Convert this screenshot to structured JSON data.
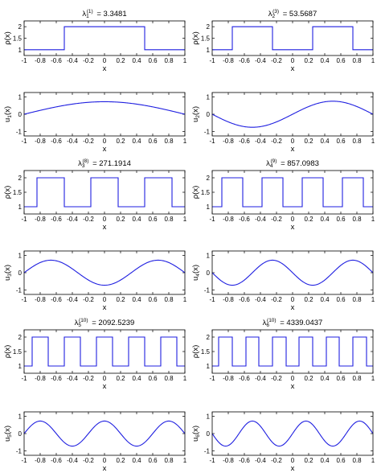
{
  "chart_data": [
    {
      "type": "line",
      "title": {
        "lambda": "λ",
        "sub": "1",
        "sup": "(1)",
        "value": "= 3.3481"
      },
      "xlabel": "x",
      "ylabel": {
        "main": "ρ",
        "arg": "(x)",
        "sub": ""
      },
      "xlim": [
        -1,
        1
      ],
      "ylim": [
        0.75,
        2.25
      ],
      "xticks": [
        -1,
        -0.8,
        -0.6,
        -0.4,
        -0.2,
        0,
        0.2,
        0.4,
        0.6,
        0.8,
        1
      ],
      "yticks": [
        1,
        1.5,
        2
      ],
      "series": [
        {
          "kind": "step",
          "rho_min": 1,
          "rho_max": 2,
          "high_intervals": [
            [
              -0.5,
              0.5
            ]
          ]
        }
      ]
    },
    {
      "type": "line",
      "title": {
        "lambda": "λ",
        "sub": "2",
        "sup": "(3)",
        "value": "= 53.5687"
      },
      "xlabel": "x",
      "ylabel": {
        "main": "ρ",
        "arg": "(x)",
        "sub": ""
      },
      "xlim": [
        -1,
        1
      ],
      "ylim": [
        0.75,
        2.25
      ],
      "xticks": [
        -1,
        -0.8,
        -0.6,
        -0.4,
        -0.2,
        0,
        0.2,
        0.4,
        0.6,
        0.8,
        1
      ],
      "yticks": [
        1,
        1.5,
        2
      ],
      "series": [
        {
          "kind": "step",
          "rho_min": 1,
          "rho_max": 2,
          "high_intervals": [
            [
              -0.75,
              -0.25
            ],
            [
              0.25,
              0.75
            ]
          ]
        }
      ]
    },
    {
      "type": "line",
      "xlabel": "x",
      "ylabel": {
        "main": "u",
        "arg": "(x)",
        "sub": "1"
      },
      "xlim": [
        -1,
        1
      ],
      "ylim": [
        -1.25,
        1.25
      ],
      "xticks": [
        -1,
        -0.8,
        -0.6,
        -0.4,
        -0.2,
        0,
        0.2,
        0.4,
        0.6,
        0.8,
        1
      ],
      "yticks": [
        -1,
        0,
        1
      ],
      "series": [
        {
          "kind": "mode",
          "k": 1,
          "amplitude": 0.72,
          "shape": "cos"
        }
      ]
    },
    {
      "type": "line",
      "xlabel": "x",
      "ylabel": {
        "main": "u",
        "arg": "(x)",
        "sub": "2"
      },
      "xlim": [
        -1,
        1
      ],
      "ylim": [
        -1.25,
        1.25
      ],
      "xticks": [
        -1,
        -0.8,
        -0.6,
        -0.4,
        -0.2,
        0,
        0.2,
        0.4,
        0.6,
        0.8,
        1
      ],
      "yticks": [
        -1,
        0,
        1
      ],
      "series": [
        {
          "kind": "mode",
          "k": 2,
          "amplitude": 0.75,
          "shape": "neg_sin"
        }
      ]
    },
    {
      "type": "line",
      "title": {
        "lambda": "λ",
        "sub": "3",
        "sup": "(8)",
        "value": "= 271.1914"
      },
      "xlabel": "x",
      "ylabel": {
        "main": "ρ",
        "arg": "(x)",
        "sub": ""
      },
      "xlim": [
        -1,
        1
      ],
      "ylim": [
        0.75,
        2.25
      ],
      "xticks": [
        -1,
        -0.8,
        -0.6,
        -0.4,
        -0.2,
        0,
        0.2,
        0.4,
        0.6,
        0.8,
        1
      ],
      "yticks": [
        1,
        1.5,
        2
      ],
      "series": [
        {
          "kind": "step",
          "rho_min": 1,
          "rho_max": 2,
          "high_intervals": [
            [
              -0.84,
              -0.5
            ],
            [
              -0.17,
              0.17
            ],
            [
              0.5,
              0.84
            ]
          ]
        }
      ]
    },
    {
      "type": "line",
      "title": {
        "lambda": "λ",
        "sub": "4",
        "sup": "(9)",
        "value": "= 857.0983"
      },
      "xlabel": "x",
      "ylabel": {
        "main": "ρ",
        "arg": "(x)",
        "sub": ""
      },
      "xlim": [
        -1,
        1
      ],
      "ylim": [
        0.75,
        2.25
      ],
      "xticks": [
        -1,
        -0.8,
        -0.6,
        -0.4,
        -0.2,
        0,
        0.2,
        0.4,
        0.6,
        0.8,
        1
      ],
      "yticks": [
        1,
        1.5,
        2
      ],
      "series": [
        {
          "kind": "step",
          "rho_min": 1,
          "rho_max": 2,
          "high_intervals": [
            [
              -0.88,
              -0.62
            ],
            [
              -0.38,
              -0.12
            ],
            [
              0.12,
              0.38
            ],
            [
              0.62,
              0.88
            ]
          ]
        }
      ]
    },
    {
      "type": "line",
      "xlabel": "x",
      "ylabel": {
        "main": "u",
        "arg": "(x)",
        "sub": "3"
      },
      "xlim": [
        -1,
        1
      ],
      "ylim": [
        -1.25,
        1.25
      ],
      "xticks": [
        -1,
        -0.8,
        -0.6,
        -0.4,
        -0.2,
        0,
        0.2,
        0.4,
        0.6,
        0.8,
        1
      ],
      "yticks": [
        -1,
        0,
        1
      ],
      "series": [
        {
          "kind": "mode",
          "k": 3,
          "amplitude": 0.72,
          "shape": "cos"
        }
      ]
    },
    {
      "type": "line",
      "xlabel": "x",
      "ylabel": {
        "main": "u",
        "arg": "(x)",
        "sub": "4"
      },
      "xlim": [
        -1,
        1
      ],
      "ylim": [
        -1.25,
        1.25
      ],
      "xticks": [
        -1,
        -0.8,
        -0.6,
        -0.4,
        -0.2,
        0,
        0.2,
        0.4,
        0.6,
        0.8,
        1
      ],
      "yticks": [
        -1,
        0,
        1
      ],
      "series": [
        {
          "kind": "mode",
          "k": 4,
          "amplitude": 0.72,
          "shape": "neg_sin"
        }
      ]
    },
    {
      "type": "line",
      "title": {
        "lambda": "λ",
        "sub": "5",
        "sup": "(10)",
        "value": "= 2092.5239"
      },
      "xlabel": "x",
      "ylabel": {
        "main": "ρ",
        "arg": "(x)",
        "sub": ""
      },
      "xlim": [
        -1,
        1
      ],
      "ylim": [
        0.75,
        2.25
      ],
      "xticks": [
        -1,
        -0.8,
        -0.6,
        -0.4,
        -0.2,
        0,
        0.2,
        0.4,
        0.6,
        0.8,
        1
      ],
      "yticks": [
        1,
        1.5,
        2
      ],
      "series": [
        {
          "kind": "step",
          "rho_min": 1,
          "rho_max": 2,
          "high_intervals": [
            [
              -0.9,
              -0.7
            ],
            [
              -0.5,
              -0.3
            ],
            [
              -0.1,
              0.1
            ],
            [
              0.3,
              0.5
            ],
            [
              0.7,
              0.9
            ]
          ]
        }
      ]
    },
    {
      "type": "line",
      "title": {
        "lambda": "λ",
        "sub": "6",
        "sup": "(10)",
        "value": "= 4339.0437"
      },
      "xlabel": "x",
      "ylabel": {
        "main": "ρ",
        "arg": "(x)",
        "sub": ""
      },
      "xlim": [
        -1,
        1
      ],
      "ylim": [
        0.75,
        2.25
      ],
      "xticks": [
        -1,
        -0.8,
        -0.6,
        -0.4,
        -0.2,
        0,
        0.2,
        0.4,
        0.6,
        0.8,
        1
      ],
      "yticks": [
        1,
        1.5,
        2
      ],
      "series": [
        {
          "kind": "step",
          "rho_min": 1,
          "rho_max": 2,
          "high_intervals": [
            [
              -0.92,
              -0.75
            ],
            [
              -0.58,
              -0.42
            ],
            [
              -0.25,
              -0.08
            ],
            [
              0.08,
              0.25
            ],
            [
              0.42,
              0.58
            ],
            [
              0.75,
              0.92
            ]
          ]
        }
      ]
    },
    {
      "type": "line",
      "xlabel": "x",
      "ylabel": {
        "main": "u",
        "arg": "(x)",
        "sub": "5"
      },
      "xlim": [
        -1,
        1
      ],
      "ylim": [
        -1.25,
        1.25
      ],
      "xticks": [
        -1,
        -0.8,
        -0.6,
        -0.4,
        -0.2,
        0,
        0.2,
        0.4,
        0.6,
        0.8,
        1
      ],
      "yticks": [
        -1,
        0,
        1
      ],
      "series": [
        {
          "kind": "mode",
          "k": 5,
          "amplitude": 0.72,
          "shape": "cos"
        }
      ]
    },
    {
      "type": "line",
      "xlabel": "x",
      "ylabel": {
        "main": "u",
        "arg": "(x)",
        "sub": "6"
      },
      "xlim": [
        -1,
        1
      ],
      "ylim": [
        -1.25,
        1.25
      ],
      "xticks": [
        -1,
        -0.8,
        -0.6,
        -0.4,
        -0.2,
        0,
        0.2,
        0.4,
        0.6,
        0.8,
        1
      ],
      "yticks": [
        -1,
        0,
        1
      ],
      "series": [
        {
          "kind": "mode",
          "k": 6,
          "amplitude": 0.72,
          "shape": "neg_sin"
        }
      ]
    }
  ],
  "colors": {
    "line": "#1f1fe0",
    "axis": "#000000",
    "background": "#ffffff"
  }
}
